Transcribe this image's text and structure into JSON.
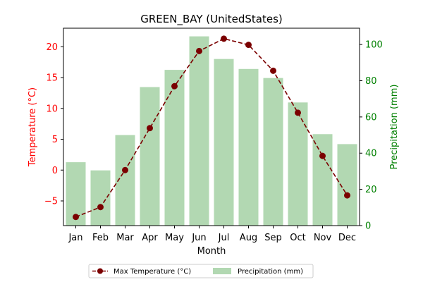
{
  "chart_data": {
    "type": "bar+line",
    "title": "GREEN_BAY (UnitedStates)",
    "xlabel": "Month",
    "ylabel_left": "Temperature (°C)",
    "ylabel_right": "Precipitation (mm)",
    "categories": [
      "Jan",
      "Feb",
      "Mar",
      "Apr",
      "May",
      "Jun",
      "Jul",
      "Aug",
      "Sep",
      "Oct",
      "Nov",
      "Dec"
    ],
    "ylim_left": [
      -9,
      23
    ],
    "ylim_right": [
      0,
      109
    ],
    "yticks_left": [
      -5,
      0,
      5,
      10,
      15,
      20
    ],
    "yticks_right": [
      0,
      20,
      40,
      60,
      80,
      100
    ],
    "series": [
      {
        "name": "Max Temperature (°C)",
        "type": "line",
        "axis": "left",
        "color": "#7b0000",
        "values": [
          -7.6,
          -6.0,
          0.0,
          6.8,
          13.6,
          19.3,
          21.3,
          20.3,
          16.1,
          9.3,
          2.3,
          -4.1
        ]
      },
      {
        "name": "Precipitation (mm)",
        "type": "bar",
        "axis": "right",
        "color": "#b2d8b2",
        "values": [
          35,
          30.5,
          50,
          76.5,
          86,
          104.5,
          92,
          86.5,
          81.5,
          68,
          50.5,
          45
        ]
      }
    ],
    "left_axis_color": "#ff0000",
    "right_axis_color": "#008000",
    "legend_position": "bottom-center"
  }
}
